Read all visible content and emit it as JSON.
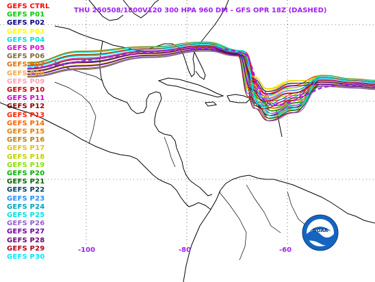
{
  "title": {
    "text": "THU 250508/1800V120  300 HPA 960 DM - GFS OPR 18Z (DASHED)",
    "color": "#a020f0"
  },
  "legend": [
    {
      "label": "GEFS CTRL",
      "color": "#ff0000"
    },
    {
      "label": "GEFS P01",
      "color": "#00cc00"
    },
    {
      "label": "GEFS P02",
      "color": "#000080"
    },
    {
      "label": "GEFS P03",
      "color": "#ffff00"
    },
    {
      "label": "GEFS P04",
      "color": "#00dddd"
    },
    {
      "label": "GEFS P05",
      "color": "#dd00dd"
    },
    {
      "label": "GEFS P06",
      "color": "#7f6a38"
    },
    {
      "label": "GEFS P07",
      "color": "#e07000"
    },
    {
      "label": "GEFS P08",
      "color": "#f0a848"
    },
    {
      "label": "GEFS P09",
      "color": "#ff9fb4"
    },
    {
      "label": "GEFS P10",
      "color": "#c80000"
    },
    {
      "label": "GEFS P11",
      "color": "#d000d0"
    },
    {
      "label": "GEFS P12",
      "color": "#8b0000"
    },
    {
      "label": "GEFS P13",
      "color": "#ff2000"
    },
    {
      "label": "GEFS P14",
      "color": "#ff6000"
    },
    {
      "label": "GEFS P15",
      "color": "#e08000"
    },
    {
      "label": "GEFS P16",
      "color": "#c08010"
    },
    {
      "label": "GEFS P17",
      "color": "#e8c000"
    },
    {
      "label": "GEFS P18",
      "color": "#c0d000"
    },
    {
      "label": "GEFS P19",
      "color": "#88e000"
    },
    {
      "label": "GEFS P20",
      "color": "#00b000"
    },
    {
      "label": "GEFS P21",
      "color": "#006400"
    },
    {
      "label": "GEFS P22",
      "color": "#004060"
    },
    {
      "label": "GEFS P23",
      "color": "#1e90ff"
    },
    {
      "label": "GEFS P24",
      "color": "#00a0c0"
    },
    {
      "label": "GEFS P25",
      "color": "#00e0e0"
    },
    {
      "label": "GEFS P26",
      "color": "#9060d0"
    },
    {
      "label": "GEFS P27",
      "color": "#7000a0"
    },
    {
      "label": "GEFS P28",
      "color": "#700070"
    },
    {
      "label": "GEFS P29",
      "color": "#b00020"
    },
    {
      "label": "GEFS P30",
      "color": "#00e8ff"
    }
  ],
  "lon_labels": [
    {
      "text": "-100",
      "lon": -100
    },
    {
      "text": "-80",
      "lon": -80
    },
    {
      "text": "-60",
      "lon": -60
    }
  ],
  "label_color": "#a020f0",
  "logo": {
    "text": "NOAA",
    "icon": "noaa-logo-icon"
  }
}
